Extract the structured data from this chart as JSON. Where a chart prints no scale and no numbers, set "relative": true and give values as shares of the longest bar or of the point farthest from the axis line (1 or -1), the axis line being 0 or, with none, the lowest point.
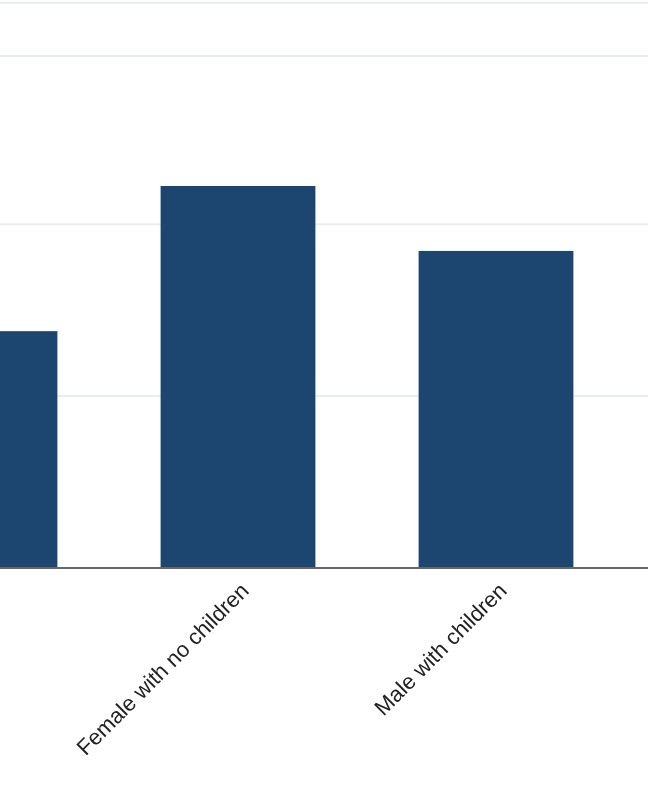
{
  "chart_data": {
    "type": "bar",
    "relative": true,
    "categories": [
      null,
      "Female with no children",
      "Male with children",
      null
    ],
    "values": [
      0.62,
      1,
      0.83,
      null
    ],
    "color": "#1c4670",
    "ref_lines": [
      {
        "axis": "y",
        "value": 0.45,
        "color": "#e8eeee"
      },
      {
        "axis": "y",
        "value": 0.9,
        "color": "#e8eeee"
      },
      {
        "axis": "y",
        "value": 1.34,
        "color": "#e8eeee"
      },
      {
        "axis": "y",
        "value": 1.48,
        "color": "#e8eeee"
      }
    ]
  }
}
